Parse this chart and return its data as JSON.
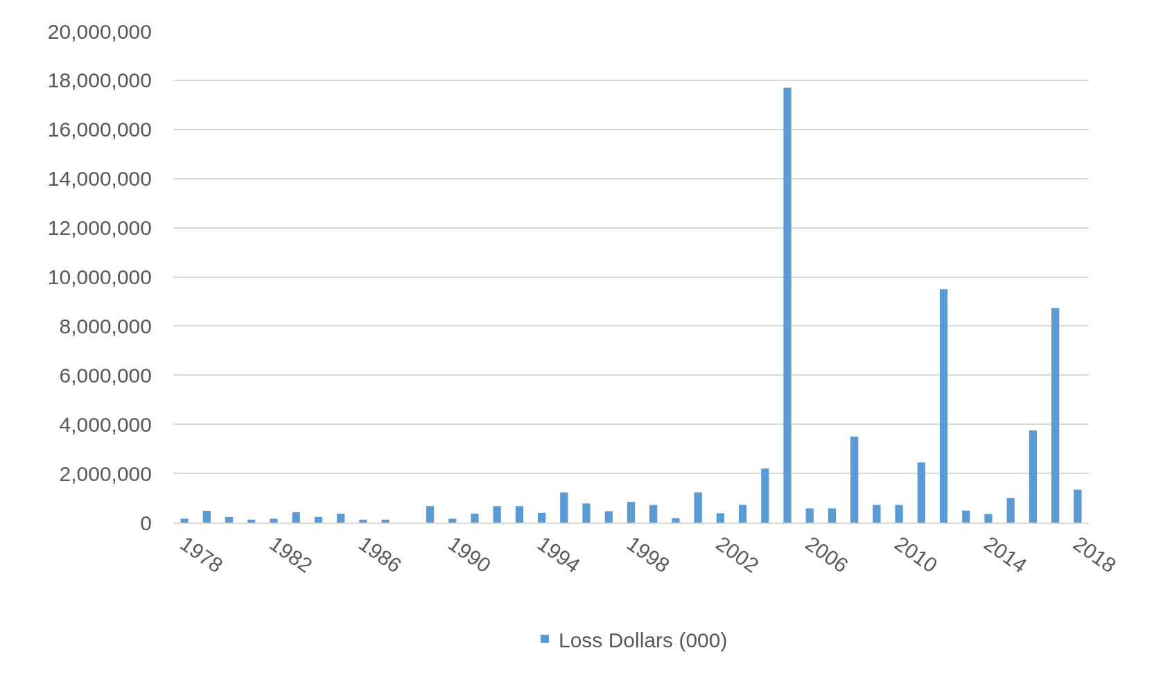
{
  "chart_data": {
    "type": "bar",
    "categories": [
      "1978",
      null,
      null,
      null,
      "1982",
      null,
      null,
      null,
      "1986",
      null,
      null,
      null,
      "1990",
      null,
      null,
      null,
      "1994",
      null,
      null,
      null,
      "1998",
      null,
      null,
      null,
      "2002",
      null,
      null,
      null,
      "2006",
      null,
      null,
      null,
      "2010",
      null,
      null,
      null,
      "2014",
      null,
      null,
      null,
      "2018"
    ],
    "series": [
      {
        "name": "Loss Dollars (000)",
        "color": "#5b9bd5",
        "values": [
          160000,
          480000,
          230000,
          120000,
          160000,
          420000,
          230000,
          360000,
          120000,
          120000,
          0,
          670000,
          160000,
          360000,
          670000,
          670000,
          400000,
          1230000,
          780000,
          460000,
          840000,
          720000,
          180000,
          1230000,
          380000,
          720000,
          2200000,
          17700000,
          580000,
          580000,
          3500000,
          720000,
          720000,
          2450000,
          9500000,
          490000,
          350000,
          1000000,
          3750000,
          8730000,
          1340000
        ]
      }
    ],
    "ylim": [
      0,
      20000000
    ],
    "yticks": [
      0,
      {
        "value": 2000000,
        "label": "2,000,000"
      },
      {
        "value": 4000000,
        "label": "4,000,000"
      },
      {
        "value": 6000000,
        "label": "6,000,000"
      },
      {
        "value": 8000000,
        "label": "8,000,000"
      },
      {
        "value": 10000000,
        "label": "10,000,000"
      },
      {
        "value": 12000000,
        "label": "12,000,000"
      },
      {
        "value": 14000000,
        "label": "14,000,000"
      },
      {
        "value": 16000000,
        "label": "16,000,000"
      },
      {
        "value": 18000000,
        "label": "18,000,000"
      },
      {
        "value": 20000000,
        "label": "20,000,000"
      }
    ],
    "grid": "y",
    "legend": "bottom"
  }
}
